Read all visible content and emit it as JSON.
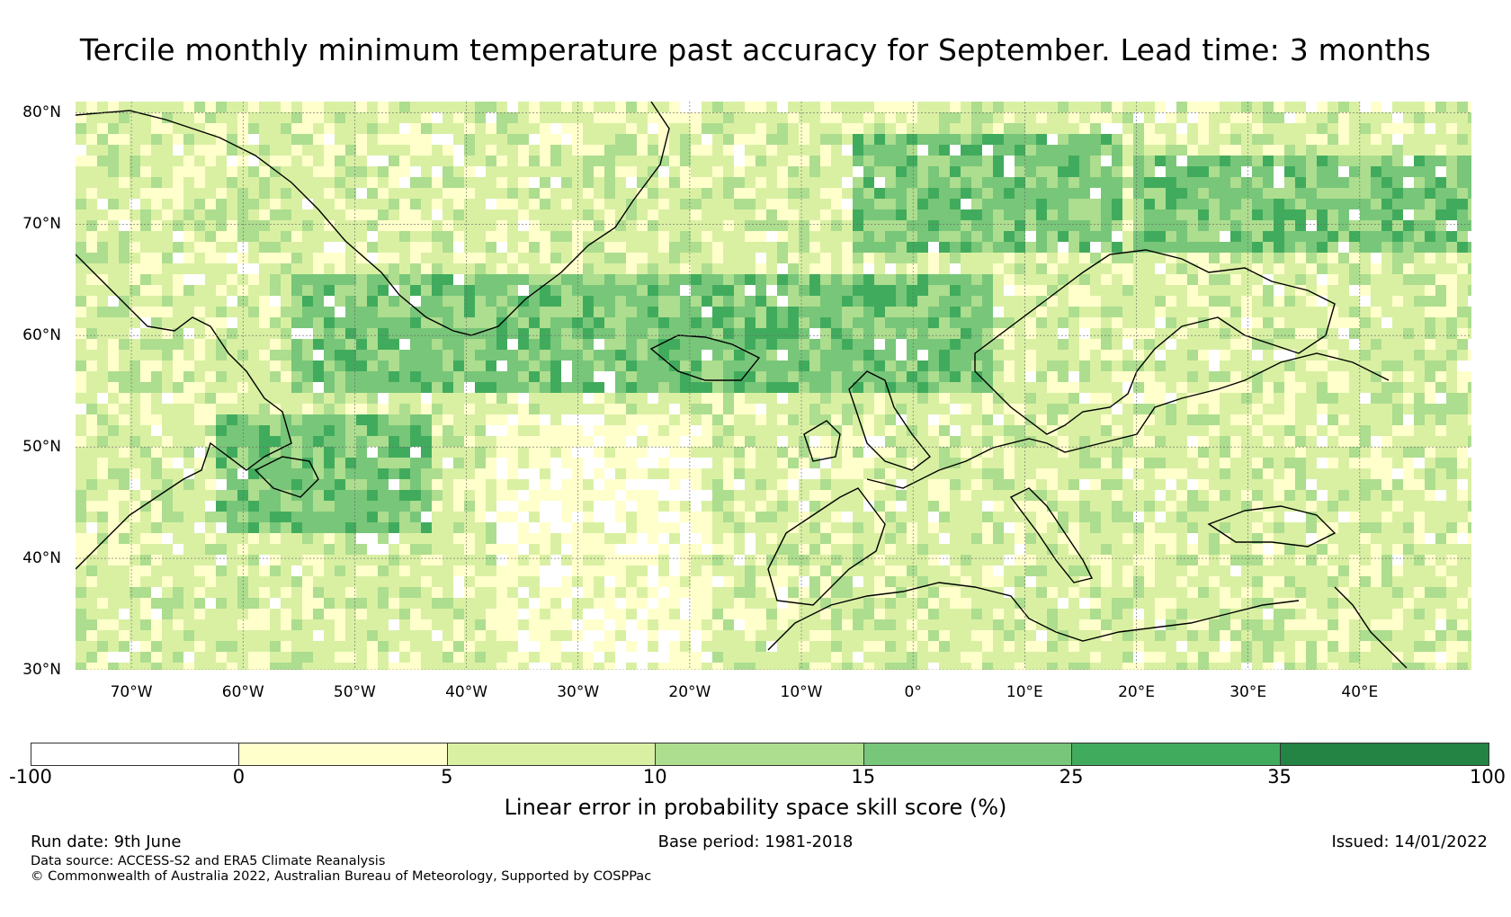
{
  "title": "Tercile monthly minimum temperature past accuracy for September. Lead time: 3 months",
  "map": {
    "lat_ticks": [
      "80°N",
      "70°N",
      "60°N",
      "50°N",
      "40°N",
      "30°N"
    ],
    "lon_ticks": [
      "70°W",
      "60°W",
      "50°W",
      "40°W",
      "30°W",
      "20°W",
      "10°W",
      "0°",
      "10°E",
      "20°E",
      "30°E",
      "40°E"
    ],
    "extent": {
      "lon_min": -75,
      "lon_max": 50,
      "lat_min": 30,
      "lat_max": 81
    },
    "gridlines": true
  },
  "colorbar": {
    "label": "Linear error in probability space skill score (%)",
    "ticks": [
      "-100",
      "0",
      "5",
      "10",
      "15",
      "25",
      "35",
      "100"
    ],
    "colors": [
      "#ffffff",
      "#ffffcc",
      "#d9f0a3",
      "#addd8e",
      "#78c679",
      "#41ab5d",
      "#238443"
    ]
  },
  "footer": {
    "run_date": "Run date: 9th June",
    "base_period": "Base period: 1981-2018",
    "issued": "Issued: 14/01/2022",
    "data_source": "Data source: ACCESS-S2 and ERA5 Climate Reanalysis",
    "copyright": "© Commonwealth of Australia 2022, Australian Bureau of Meteorology, Supported by COSPPac"
  }
}
